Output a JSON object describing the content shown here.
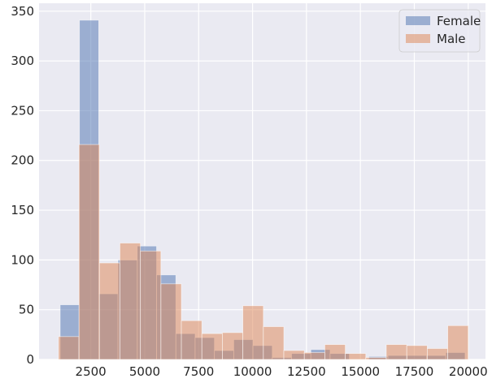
{
  "chart_data": {
    "type": "bar",
    "subtype": "overlapping-histogram",
    "title": "",
    "xlabel": "",
    "ylabel": "",
    "grid": true,
    "legend_position": "top-right",
    "xlim": [
      100,
      20800
    ],
    "ylim": [
      0,
      358
    ],
    "xticks": [
      2500,
      5000,
      7500,
      10000,
      12500,
      15000,
      17500,
      20000
    ],
    "yticks": [
      0,
      50,
      100,
      150,
      200,
      250,
      300,
      350
    ],
    "xtick_labels": [
      "2500",
      "5000",
      "7500",
      "10000",
      "12500",
      "15000",
      "17500",
      "20000"
    ],
    "ytick_labels": [
      "0",
      "50",
      "100",
      "150",
      "200",
      "250",
      "300",
      "350"
    ],
    "colors": {
      "background": "#EAEAF2",
      "grid": "#FFFFFF",
      "Female": "#4C72B0",
      "Male": "#DD8452"
    },
    "series": [
      {
        "name": "Female",
        "bin_edges": [
          1080,
          1974,
          2868,
          3762,
          4656,
          5550,
          6444,
          7338,
          8232,
          9126,
          10020,
          10914,
          11808,
          12702,
          13596,
          14490,
          15384,
          16278,
          17172,
          18066,
          18960,
          19854
        ],
        "counts": [
          55,
          341,
          66,
          100,
          114,
          85,
          26,
          22,
          9,
          20,
          14,
          2,
          6,
          10,
          6,
          0,
          3,
          4,
          4,
          4,
          7
        ]
      },
      {
        "name": "Male",
        "bin_edges": [
          1000,
          1950,
          2900,
          3850,
          4800,
          5750,
          6700,
          7650,
          8600,
          9550,
          10500,
          11450,
          12400,
          13350,
          14300,
          15250,
          16200,
          17150,
          18100,
          19050,
          20000
        ],
        "counts": [
          23,
          216,
          97,
          117,
          109,
          76,
          39,
          26,
          27,
          54,
          33,
          9,
          7,
          15,
          6,
          2,
          15,
          14,
          11,
          34
        ]
      }
    ]
  }
}
